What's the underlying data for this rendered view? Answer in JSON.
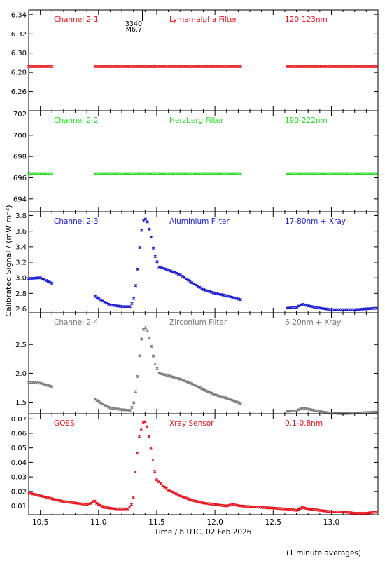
{
  "ylabel": "Calibrated Signal  /  (mW m⁻²)",
  "xlabel": "Time / h UTC, 02 Feb 2026",
  "footnote": "(1 minute averages)",
  "flare_marker": {
    "number": "3340",
    "class": "M6.7",
    "time": 11.38
  },
  "xaxis": {
    "range": [
      10.4,
      13.4
    ],
    "ticks": [
      "10.5",
      "11.0",
      "11.5",
      "12.0",
      "12.5",
      "13.0"
    ],
    "tick_values": [
      10.5,
      11.0,
      11.5,
      12.0,
      12.5,
      13.0
    ]
  },
  "colors": {
    "red": "#e8101a",
    "green": "#22dd22",
    "blue": "#1a1ad0",
    "gray": "#7a7a7a"
  },
  "chart_data": [
    {
      "type": "scatter",
      "channel": "Channel 2-1",
      "filter": "Lyman-alpha Filter",
      "band": "120-123nm",
      "color": "#e8101a",
      "ylim": [
        6.24,
        6.345
      ],
      "yticks": [
        "6.26",
        "6.28",
        "6.30",
        "6.32",
        "6.34"
      ],
      "ytick_values": [
        6.26,
        6.28,
        6.3,
        6.32,
        6.34
      ],
      "x": [
        10.4,
        10.6,
        10.97,
        12.22,
        12.62,
        13.4
      ],
      "series_points": [
        [
          10.4,
          6.286
        ],
        [
          10.6,
          6.286
        ],
        [
          10.97,
          6.286
        ],
        [
          12.22,
          6.286
        ],
        [
          12.62,
          6.286
        ],
        [
          13.4,
          6.286
        ]
      ],
      "segments": [
        [
          10.4,
          10.6
        ],
        [
          10.97,
          12.22
        ],
        [
          12.62,
          13.4
        ]
      ],
      "level": 6.286
    },
    {
      "type": "scatter",
      "channel": "Channel 2-2",
      "filter": "Herzberg Filter",
      "band": "190-222nm",
      "color": "#22dd22",
      "ylim": [
        692.8,
        702.3
      ],
      "yticks": [
        "694",
        "696",
        "698",
        "700",
        "702"
      ],
      "ytick_values": [
        694,
        696,
        698,
        700,
        702
      ],
      "segments": [
        [
          10.4,
          10.6
        ],
        [
          10.97,
          12.22
        ],
        [
          12.62,
          13.4
        ]
      ],
      "level": 696.4
    },
    {
      "type": "scatter",
      "channel": "Channel 2-3",
      "filter": "Aluminium Filter",
      "band": "17-80nm + Xray",
      "color": "#1a1ad0",
      "ylim": [
        2.55,
        3.85
      ],
      "yticks": [
        "2.6",
        "2.8",
        "3.0",
        "3.2",
        "3.4",
        "3.6",
        "3.8"
      ],
      "ytick_values": [
        2.6,
        2.8,
        3.0,
        3.2,
        3.4,
        3.6,
        3.8
      ],
      "segments": [
        [
          10.4,
          10.6
        ],
        [
          10.97,
          12.22
        ],
        [
          12.62,
          13.4
        ]
      ],
      "curve": [
        [
          10.4,
          2.99
        ],
        [
          10.5,
          3.0
        ],
        [
          10.6,
          2.93
        ],
        [
          10.97,
          2.76
        ],
        [
          11.05,
          2.69
        ],
        [
          11.1,
          2.65
        ],
        [
          11.2,
          2.63
        ],
        [
          11.27,
          2.63
        ],
        [
          11.3,
          2.7
        ],
        [
          11.33,
          3.0
        ],
        [
          11.36,
          3.5
        ],
        [
          11.38,
          3.72
        ],
        [
          11.4,
          3.76
        ],
        [
          11.42,
          3.72
        ],
        [
          11.45,
          3.55
        ],
        [
          11.48,
          3.3
        ],
        [
          11.52,
          3.14
        ],
        [
          11.6,
          3.1
        ],
        [
          11.7,
          3.04
        ],
        [
          11.8,
          2.94
        ],
        [
          11.9,
          2.85
        ],
        [
          12.0,
          2.8
        ],
        [
          12.1,
          2.77
        ],
        [
          12.22,
          2.72
        ],
        [
          12.62,
          2.61
        ],
        [
          12.7,
          2.62
        ],
        [
          12.75,
          2.66
        ],
        [
          12.8,
          2.64
        ],
        [
          12.9,
          2.61
        ],
        [
          13.0,
          2.59
        ],
        [
          13.1,
          2.59
        ],
        [
          13.2,
          2.59
        ],
        [
          13.3,
          2.6
        ],
        [
          13.4,
          2.61
        ]
      ]
    },
    {
      "type": "scatter",
      "channel": "Channel 2-4",
      "filter": "Zirconium Filter",
      "band": "6-20nm + Xray",
      "color": "#7a7a7a",
      "ylim": [
        1.3,
        3.05
      ],
      "yticks": [
        "1.5",
        "2.0",
        "2.5"
      ],
      "ytick_values": [
        1.5,
        2.0,
        2.5
      ],
      "segments": [
        [
          10.4,
          10.6
        ],
        [
          10.97,
          12.22
        ],
        [
          12.62,
          13.4
        ]
      ],
      "curve": [
        [
          10.4,
          1.84
        ],
        [
          10.5,
          1.83
        ],
        [
          10.6,
          1.77
        ],
        [
          10.97,
          1.55
        ],
        [
          11.05,
          1.45
        ],
        [
          11.1,
          1.4
        ],
        [
          11.2,
          1.37
        ],
        [
          11.27,
          1.36
        ],
        [
          11.3,
          1.45
        ],
        [
          11.33,
          1.8
        ],
        [
          11.36,
          2.45
        ],
        [
          11.38,
          2.74
        ],
        [
          11.4,
          2.8
        ],
        [
          11.42,
          2.74
        ],
        [
          11.45,
          2.5
        ],
        [
          11.48,
          2.2
        ],
        [
          11.52,
          2.0
        ],
        [
          11.6,
          1.96
        ],
        [
          11.7,
          1.9
        ],
        [
          11.8,
          1.82
        ],
        [
          11.9,
          1.72
        ],
        [
          12.0,
          1.63
        ],
        [
          12.1,
          1.57
        ],
        [
          12.22,
          1.48
        ],
        [
          12.62,
          1.34
        ],
        [
          12.7,
          1.35
        ],
        [
          12.75,
          1.4
        ],
        [
          12.8,
          1.38
        ],
        [
          12.9,
          1.34
        ],
        [
          13.0,
          1.31
        ],
        [
          13.1,
          1.3
        ],
        [
          13.2,
          1.31
        ],
        [
          13.3,
          1.32
        ],
        [
          13.4,
          1.33
        ]
      ]
    },
    {
      "type": "scatter",
      "channel": "GOES",
      "filter": "Xray Sensor",
      "band": "0.1-0.8nm",
      "color": "#e8101a",
      "ylim": [
        0.004,
        0.0735
      ],
      "yticks": [
        "0.01",
        "0.02",
        "0.03",
        "0.04",
        "0.05",
        "0.06",
        "0.07"
      ],
      "ytick_values": [
        0.01,
        0.02,
        0.03,
        0.04,
        0.05,
        0.06,
        0.07
      ],
      "segments": [
        [
          10.4,
          13.4
        ]
      ],
      "curve": [
        [
          10.4,
          0.019
        ],
        [
          10.5,
          0.017
        ],
        [
          10.6,
          0.015
        ],
        [
          10.7,
          0.013
        ],
        [
          10.8,
          0.012
        ],
        [
          10.9,
          0.011
        ],
        [
          10.94,
          0.012
        ],
        [
          10.96,
          0.014
        ],
        [
          10.98,
          0.012
        ],
        [
          11.05,
          0.009
        ],
        [
          11.15,
          0.008
        ],
        [
          11.25,
          0.008
        ],
        [
          11.28,
          0.01
        ],
        [
          11.3,
          0.016
        ],
        [
          11.32,
          0.037
        ],
        [
          11.35,
          0.058
        ],
        [
          11.38,
          0.067
        ],
        [
          11.4,
          0.068
        ],
        [
          11.42,
          0.064
        ],
        [
          11.45,
          0.05
        ],
        [
          11.48,
          0.035
        ],
        [
          11.5,
          0.028
        ],
        [
          11.55,
          0.024
        ],
        [
          11.6,
          0.021
        ],
        [
          11.7,
          0.017
        ],
        [
          11.8,
          0.014
        ],
        [
          11.9,
          0.012
        ],
        [
          12.0,
          0.011
        ],
        [
          12.1,
          0.01
        ],
        [
          12.15,
          0.011
        ],
        [
          12.22,
          0.01
        ],
        [
          12.4,
          0.009
        ],
        [
          12.6,
          0.008
        ],
        [
          12.7,
          0.007
        ],
        [
          12.75,
          0.009
        ],
        [
          12.8,
          0.008
        ],
        [
          12.9,
          0.007
        ],
        [
          13.0,
          0.006
        ],
        [
          13.1,
          0.006
        ],
        [
          13.2,
          0.005
        ],
        [
          13.3,
          0.005
        ],
        [
          13.4,
          0.006
        ]
      ]
    }
  ]
}
